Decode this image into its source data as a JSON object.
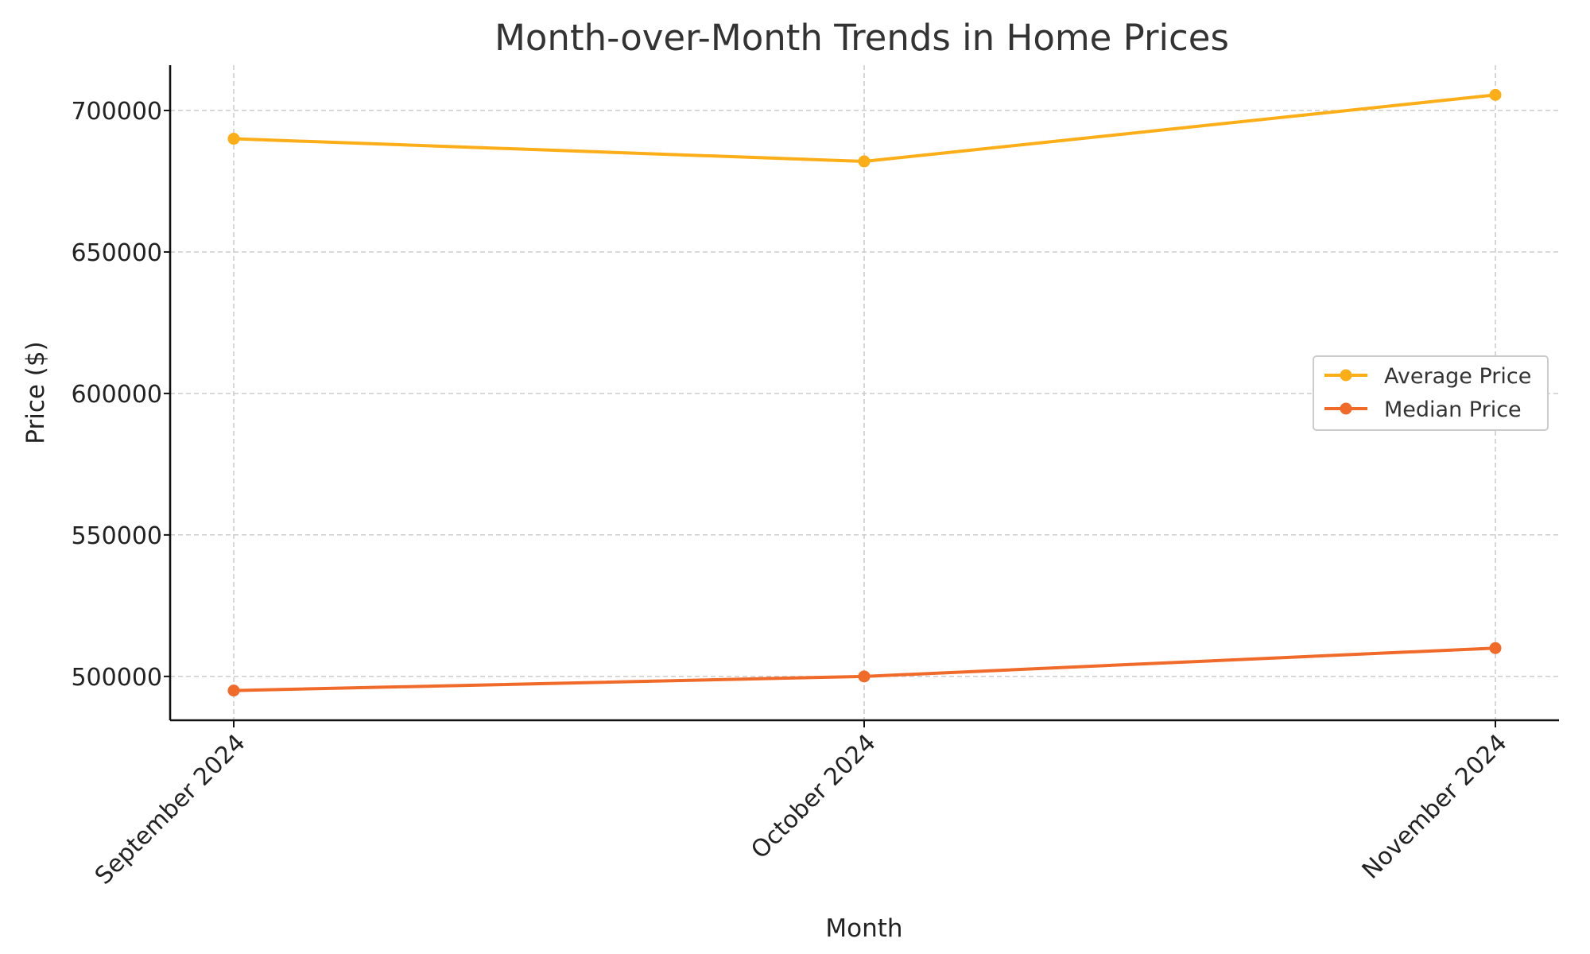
{
  "chart_data": {
    "type": "line",
    "title": "Month-over-Month Trends in Home Prices",
    "xlabel": "Month",
    "ylabel": "Price ($)",
    "categories": [
      "September 2024",
      "October 2024",
      "November 2024"
    ],
    "series": [
      {
        "name": "Average Price",
        "values": [
          690000,
          682000,
          705500
        ],
        "color": "#FBAE17"
      },
      {
        "name": "Median Price",
        "values": [
          495000,
          500000,
          510000
        ],
        "color": "#F06A2A"
      }
    ],
    "yticks": [
      500000,
      550000,
      600000,
      650000,
      700000
    ],
    "ylim": [
      484500,
      716000
    ],
    "grid": true,
    "legend_position": "center-right"
  }
}
